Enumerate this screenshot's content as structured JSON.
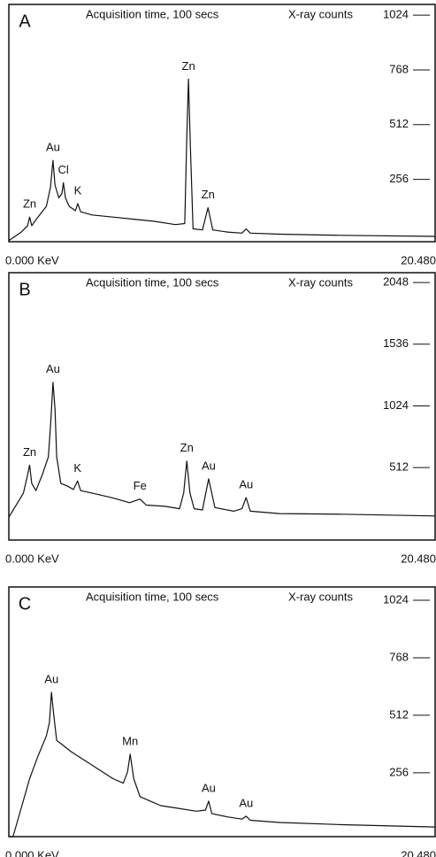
{
  "chart_data": [
    {
      "type": "line",
      "label": "A",
      "title": "Acquisition time, 100 secs",
      "y_label": "X-ray counts",
      "x": [
        0,
        0.6,
        0.9,
        1.0,
        1.1,
        1.4,
        1.8,
        2.0,
        2.12,
        2.22,
        2.4,
        2.55,
        2.62,
        2.72,
        2.9,
        3.2,
        3.31,
        3.45,
        4,
        5,
        6,
        7,
        8,
        8.45,
        8.55,
        8.63,
        8.72,
        8.85,
        9.3,
        9.57,
        9.8,
        10.5,
        11.2,
        11.4,
        11.6,
        13,
        16,
        20.48
      ],
      "series": [
        {
          "color": "#111111",
          "values": [
            -30,
            10,
            40,
            80,
            40,
            80,
            130,
            220,
            345,
            230,
            170,
            190,
            240,
            170,
            130,
            110,
            143,
            105,
            90,
            80,
            70,
            60,
            45,
            50,
            450,
            725,
            420,
            25,
            20,
            124,
            20,
            10,
            5,
            25,
            5,
            0,
            -5,
            -10
          ]
        }
      ],
      "xlim": [
        0,
        20.48
      ],
      "xticks": [
        {
          "value": 0,
          "label": "0.000 KeV"
        },
        {
          "value": 20.48,
          "label": "20.480"
        }
      ],
      "ylim": [
        -35,
        1074
      ],
      "yticks": [
        256,
        512,
        768,
        1024
      ],
      "annotations": [
        {
          "text": "Zn",
          "x": 1.0,
          "y": 80
        },
        {
          "text": "Au",
          "x": 2.12,
          "y": 345
        },
        {
          "text": "Cl",
          "x": 2.62,
          "y": 240
        },
        {
          "text": "K",
          "x": 3.31,
          "y": 143
        },
        {
          "text": "Zn",
          "x": 8.63,
          "y": 725
        },
        {
          "text": "Zn",
          "x": 9.57,
          "y": 124
        }
      ]
    },
    {
      "type": "line",
      "label": "B",
      "title": "Acquisition time, 100 secs",
      "y_label": "X-ray counts",
      "x": [
        0,
        0.7,
        0.9,
        1.0,
        1.1,
        1.3,
        1.6,
        1.9,
        2.02,
        2.12,
        2.22,
        2.3,
        2.5,
        2.8,
        3.1,
        3.3,
        3.45,
        4,
        5,
        5.8,
        6.3,
        6.6,
        7.5,
        8.2,
        8.4,
        8.55,
        8.7,
        8.9,
        9.3,
        9.6,
        9.9,
        10.8,
        11.2,
        11.4,
        11.6,
        13,
        16,
        20.48
      ],
      "series": [
        {
          "color": "#111111",
          "values": [
            100,
            300,
            450,
            532,
            380,
            320,
            450,
            600,
            900,
            1220,
            1000,
            600,
            380,
            360,
            330,
            400,
            320,
            300,
            260,
            220,
            250,
            200,
            190,
            170,
            300,
            566,
            300,
            170,
            160,
            418,
            180,
            150,
            170,
            263,
            150,
            130,
            125,
            110
          ]
        }
      ],
      "xlim": [
        0,
        20.48
      ],
      "xticks": [
        {
          "value": 0,
          "label": "0.000 KeV"
        },
        {
          "value": 20.48,
          "label": "20.480"
        }
      ],
      "ylim": [
        -90,
        2130
      ],
      "yticks": [
        512,
        1024,
        1536,
        2048
      ],
      "annotations": [
        {
          "text": "Zn",
          "x": 1.0,
          "y": 532
        },
        {
          "text": "Au",
          "x": 2.12,
          "y": 1220
        },
        {
          "text": "K",
          "x": 3.3,
          "y": 400
        },
        {
          "text": "Fe",
          "x": 6.3,
          "y": 250
        },
        {
          "text": "Zn",
          "x": 8.55,
          "y": 566
        },
        {
          "text": "Au",
          "x": 9.6,
          "y": 418
        },
        {
          "text": "Au",
          "x": 11.4,
          "y": 263
        }
      ]
    },
    {
      "type": "line",
      "label": "C",
      "title": "Acquisition time, 100 secs",
      "y_label": "X-ray counts",
      "x": [
        0,
        0.2,
        0.6,
        1.0,
        1.4,
        1.8,
        1.95,
        2.05,
        2.15,
        2.3,
        2.5,
        3,
        3.5,
        4,
        4.5,
        5,
        5.5,
        5.7,
        5.83,
        6.0,
        6.3,
        6.8,
        7.3,
        8,
        9,
        9.45,
        9.6,
        9.75,
        10.5,
        11.2,
        11.4,
        11.6,
        13,
        16,
        20.48
      ],
      "series": [
        {
          "color": "#111111",
          "values": [
            -28,
            -28,
            100,
            230,
            330,
            420,
            480,
            614,
            520,
            400,
            386,
            350,
            320,
            290,
            260,
            230,
            210,
            260,
            339,
            230,
            150,
            130,
            110,
            100,
            85,
            90,
            130,
            75,
            60,
            50,
            63,
            45,
            35,
            25,
            15
          ]
        }
      ],
      "xlim": [
        0,
        20.48
      ],
      "xticks": [
        {
          "value": 0,
          "label": "0.000 KeV"
        },
        {
          "value": 20.48,
          "label": "20.480"
        }
      ],
      "ylim": [
        -28,
        1083
      ],
      "yticks": [
        256,
        512,
        768,
        1024
      ],
      "annotations": [
        {
          "text": "Au",
          "x": 2.05,
          "y": 614
        },
        {
          "text": "Mn",
          "x": 5.83,
          "y": 339
        },
        {
          "text": "Au",
          "x": 9.6,
          "y": 130
        },
        {
          "text": "Au",
          "x": 11.4,
          "y": 63
        }
      ]
    }
  ]
}
